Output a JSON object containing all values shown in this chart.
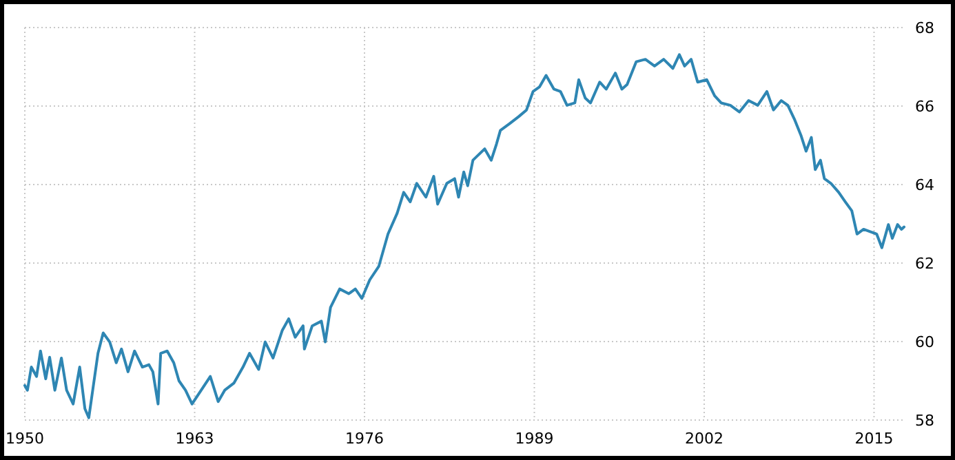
{
  "chart_data": {
    "type": "line",
    "x": [
      1950.0,
      1950.2,
      1950.5,
      1950.9,
      1951.2,
      1951.6,
      1951.9,
      1952.3,
      1952.8,
      1953.2,
      1953.7,
      1954.2,
      1954.6,
      1954.9,
      1955.3,
      1955.6,
      1956.0,
      1956.5,
      1957.0,
      1957.4,
      1957.9,
      1958.4,
      1959.0,
      1959.5,
      1959.8,
      1960.2,
      1960.4,
      1960.9,
      1961.4,
      1961.8,
      1962.3,
      1962.8,
      1963.5,
      1964.2,
      1964.8,
      1965.3,
      1966.0,
      1966.7,
      1967.2,
      1967.9,
      1968.4,
      1969.0,
      1969.7,
      1970.2,
      1970.7,
      1971.3,
      1971.4,
      1972.0,
      1972.7,
      1973.0,
      1973.4,
      1974.1,
      1974.8,
      1975.3,
      1975.8,
      1976.4,
      1977.1,
      1977.8,
      1978.5,
      1979.0,
      1979.5,
      1980.0,
      1980.7,
      1981.3,
      1981.6,
      1982.3,
      1982.9,
      1983.2,
      1983.6,
      1983.9,
      1984.3,
      1985.2,
      1985.7,
      1986.1,
      1986.4,
      1987.1,
      1987.8,
      1988.4,
      1988.9,
      1989.4,
      1989.9,
      1990.5,
      1991.0,
      1991.5,
      1992.1,
      1992.4,
      1992.9,
      1993.3,
      1994.0,
      1994.5,
      1995.2,
      1995.7,
      1996.1,
      1996.8,
      1997.5,
      1998.2,
      1998.9,
      1999.6,
      2000.1,
      2000.5,
      2001.0,
      2001.5,
      2002.2,
      2002.8,
      2003.3,
      2004.0,
      2004.7,
      2005.4,
      2006.1,
      2006.8,
      2007.3,
      2007.9,
      2008.4,
      2008.9,
      2009.4,
      2009.8,
      2010.2,
      2010.5,
      2010.9,
      2011.2,
      2011.7,
      2012.3,
      2012.8,
      2013.3,
      2013.7,
      2014.2,
      2014.7,
      2015.2,
      2015.6,
      2016.1,
      2016.4,
      2016.8,
      2017.1,
      2017.3
    ],
    "series": [
      {
        "color": "#2e86b3",
        "values": [
          58.88,
          58.76,
          59.35,
          59.11,
          59.76,
          59.05,
          59.6,
          58.76,
          59.58,
          58.76,
          58.41,
          59.35,
          58.29,
          58.06,
          59.0,
          59.7,
          60.22,
          59.99,
          59.46,
          59.81,
          59.23,
          59.76,
          59.35,
          59.41,
          59.23,
          58.41,
          59.7,
          59.76,
          59.46,
          59.0,
          58.76,
          58.41,
          58.76,
          59.11,
          58.47,
          58.76,
          58.94,
          59.35,
          59.7,
          59.29,
          59.99,
          59.58,
          60.28,
          60.58,
          60.11,
          60.4,
          59.81,
          60.4,
          60.52,
          59.99,
          60.87,
          61.34,
          61.22,
          61.34,
          61.1,
          61.57,
          61.92,
          62.74,
          63.27,
          63.8,
          63.56,
          64.03,
          63.68,
          64.21,
          63.5,
          64.03,
          64.15,
          63.68,
          64.32,
          63.97,
          64.62,
          64.91,
          64.62,
          65.03,
          65.38,
          65.55,
          65.73,
          65.9,
          66.37,
          66.49,
          66.78,
          66.43,
          66.37,
          66.02,
          66.08,
          66.67,
          66.2,
          66.08,
          66.61,
          66.43,
          66.84,
          66.43,
          66.55,
          67.13,
          67.19,
          67.02,
          67.19,
          66.96,
          67.31,
          67.02,
          67.19,
          66.61,
          66.67,
          66.26,
          66.08,
          66.02,
          65.85,
          66.14,
          66.02,
          66.37,
          65.9,
          66.14,
          66.02,
          65.67,
          65.26,
          64.85,
          65.2,
          64.38,
          64.62,
          64.15,
          64.03,
          63.8,
          63.56,
          63.33,
          62.74,
          62.86,
          62.8,
          62.74,
          62.39,
          62.98,
          62.63,
          62.98,
          62.86,
          62.92
        ]
      }
    ],
    "xlim": [
      1950,
      2017.4
    ],
    "xticks": [
      1950,
      1963,
      1976,
      1989,
      2002,
      2015
    ],
    "ylim": [
      58,
      68
    ],
    "yticks": [
      58,
      60,
      62,
      64,
      66,
      68
    ],
    "grid": true,
    "marker": "none",
    "line_style": "solid"
  }
}
